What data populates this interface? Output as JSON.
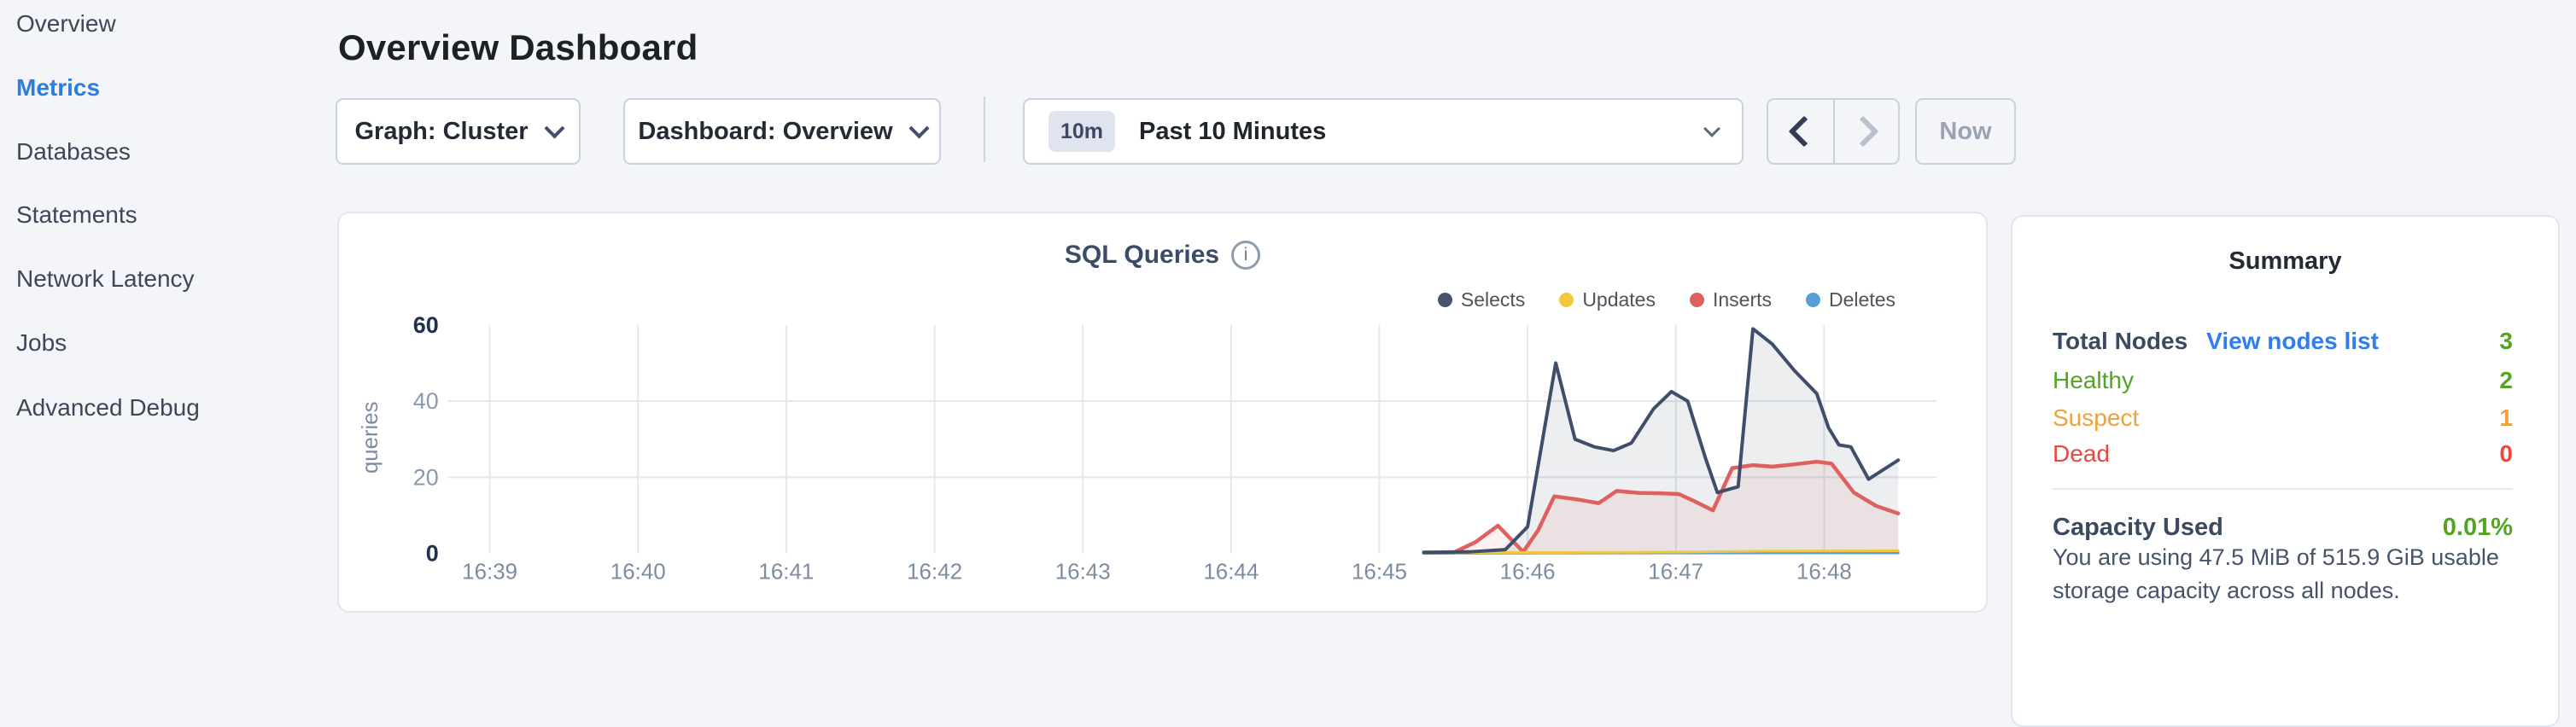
{
  "header": {
    "title": "Overview Dashboard"
  },
  "sidebar": {
    "items": [
      {
        "label": "Overview",
        "active": false
      },
      {
        "label": "Metrics",
        "active": true
      },
      {
        "label": "Databases",
        "active": false
      },
      {
        "label": "Statements",
        "active": false
      },
      {
        "label": "Network Latency",
        "active": false
      },
      {
        "label": "Jobs",
        "active": false
      },
      {
        "label": "Advanced Debug",
        "active": false
      }
    ]
  },
  "controls": {
    "graph_dropdown": {
      "label": "Graph: Cluster"
    },
    "dashboard_dropdown": {
      "label": "Dashboard: Overview"
    },
    "time_selector": {
      "badge": "10m",
      "label": "Past 10 Minutes"
    },
    "prev_button_enabled": true,
    "next_button_enabled": false,
    "now_button_label": "Now"
  },
  "chart_card": {
    "title": "SQL Queries",
    "info_glyph": "i"
  },
  "chart_data": {
    "type": "area",
    "title": "SQL Queries",
    "xlabel": "",
    "ylabel": "queries",
    "ylim": [
      0,
      62
    ],
    "yticks": [
      {
        "v": 0,
        "label": "0",
        "strong": true,
        "grid": false
      },
      {
        "v": 20,
        "label": "20",
        "strong": false,
        "grid": true
      },
      {
        "v": 40,
        "label": "40",
        "strong": false,
        "grid": true
      },
      {
        "v": 60,
        "label": "60",
        "strong": true,
        "grid": false
      }
    ],
    "x_ticks": [
      "16:39",
      "16:40",
      "16:41",
      "16:42",
      "16:43",
      "16:44",
      "16:45",
      "16:46",
      "16:47",
      "16:48"
    ],
    "grid": "vertical-at-each-minute, horizontal-at-20-40",
    "legend_position": "top-right",
    "series": [
      {
        "name": "Selects",
        "color": "#47536b",
        "line": "#3e4e6b",
        "fill": "rgba(72,87,110,0.10)",
        "width": 4,
        "points": [
          [
            6.3,
            0.3
          ],
          [
            6.6,
            0.4
          ],
          [
            6.85,
            1
          ],
          [
            7.0,
            7
          ],
          [
            7.19,
            50
          ],
          [
            7.32,
            30
          ],
          [
            7.45,
            28
          ],
          [
            7.58,
            27
          ],
          [
            7.7,
            29
          ],
          [
            7.85,
            38
          ],
          [
            7.97,
            42.5
          ],
          [
            8.08,
            40
          ],
          [
            8.2,
            25
          ],
          [
            8.28,
            16
          ],
          [
            8.42,
            17.5
          ],
          [
            8.52,
            59
          ],
          [
            8.65,
            55
          ],
          [
            8.8,
            48
          ],
          [
            8.95,
            42
          ],
          [
            9.03,
            33
          ],
          [
            9.1,
            28.5
          ],
          [
            9.18,
            28
          ],
          [
            9.3,
            19.5
          ],
          [
            9.5,
            24.5
          ]
        ]
      },
      {
        "name": "Updates",
        "color": "#f1c840",
        "line": "#f1c840",
        "fill": "none",
        "width": 3,
        "points": [
          [
            6.3,
            0.2
          ],
          [
            7.2,
            0.25
          ],
          [
            8.0,
            0.35
          ],
          [
            8.6,
            0.6
          ],
          [
            9.5,
            0.7
          ]
        ]
      },
      {
        "name": "Inserts",
        "color": "#de605f",
        "line": "#de605f",
        "fill": "rgba(222,96,95,0.09)",
        "width": 4.5,
        "points": [
          [
            6.3,
            0.15
          ],
          [
            6.5,
            0.2
          ],
          [
            6.65,
            3
          ],
          [
            6.8,
            7.3
          ],
          [
            6.97,
            0.4
          ],
          [
            7.07,
            6
          ],
          [
            7.18,
            15
          ],
          [
            7.33,
            14.2
          ],
          [
            7.48,
            13.2
          ],
          [
            7.6,
            16.4
          ],
          [
            7.75,
            15.9
          ],
          [
            7.9,
            15.8
          ],
          [
            8.02,
            15.6
          ],
          [
            8.12,
            13.8
          ],
          [
            8.25,
            11.3
          ],
          [
            8.38,
            22.4
          ],
          [
            8.52,
            23.2
          ],
          [
            8.65,
            22.8
          ],
          [
            8.8,
            23.4
          ],
          [
            8.95,
            24.1
          ],
          [
            9.05,
            23.6
          ],
          [
            9.2,
            16
          ],
          [
            9.35,
            12.5
          ],
          [
            9.5,
            10.5
          ]
        ]
      },
      {
        "name": "Deletes",
        "color": "#57a0d5",
        "line": "#57a0d5",
        "fill": "none",
        "width": 3,
        "points": [
          [
            6.3,
            0.05
          ],
          [
            7.5,
            0.1
          ],
          [
            9.5,
            0.12
          ]
        ]
      }
    ]
  },
  "summary": {
    "title": "Summary",
    "rows": [
      {
        "label": "Total Nodes",
        "link": "View nodes list",
        "value": "3",
        "status": "green"
      },
      {
        "label": "Healthy",
        "value": "2",
        "status": "green"
      },
      {
        "label": "Suspect",
        "value": "1",
        "status": "orange"
      },
      {
        "label": "Dead",
        "value": "0",
        "status": "red"
      }
    ],
    "capacity": {
      "label": "Capacity Used",
      "value": "0.01%",
      "description": "You are using 47.5 MiB of 515.9 GiB usable storage capacity across all nodes."
    }
  },
  "colors": {
    "accent_blue": "#2a7de1",
    "link_blue": "#2f7ef0",
    "healthy_green": "#54a423",
    "suspect_orange": "#efa13b",
    "dead_red": "#e8483f",
    "selects": "#47536b",
    "updates": "#f1c840",
    "inserts": "#de605f",
    "deletes": "#57a0d5",
    "page_bg": "#f4f5f9"
  }
}
